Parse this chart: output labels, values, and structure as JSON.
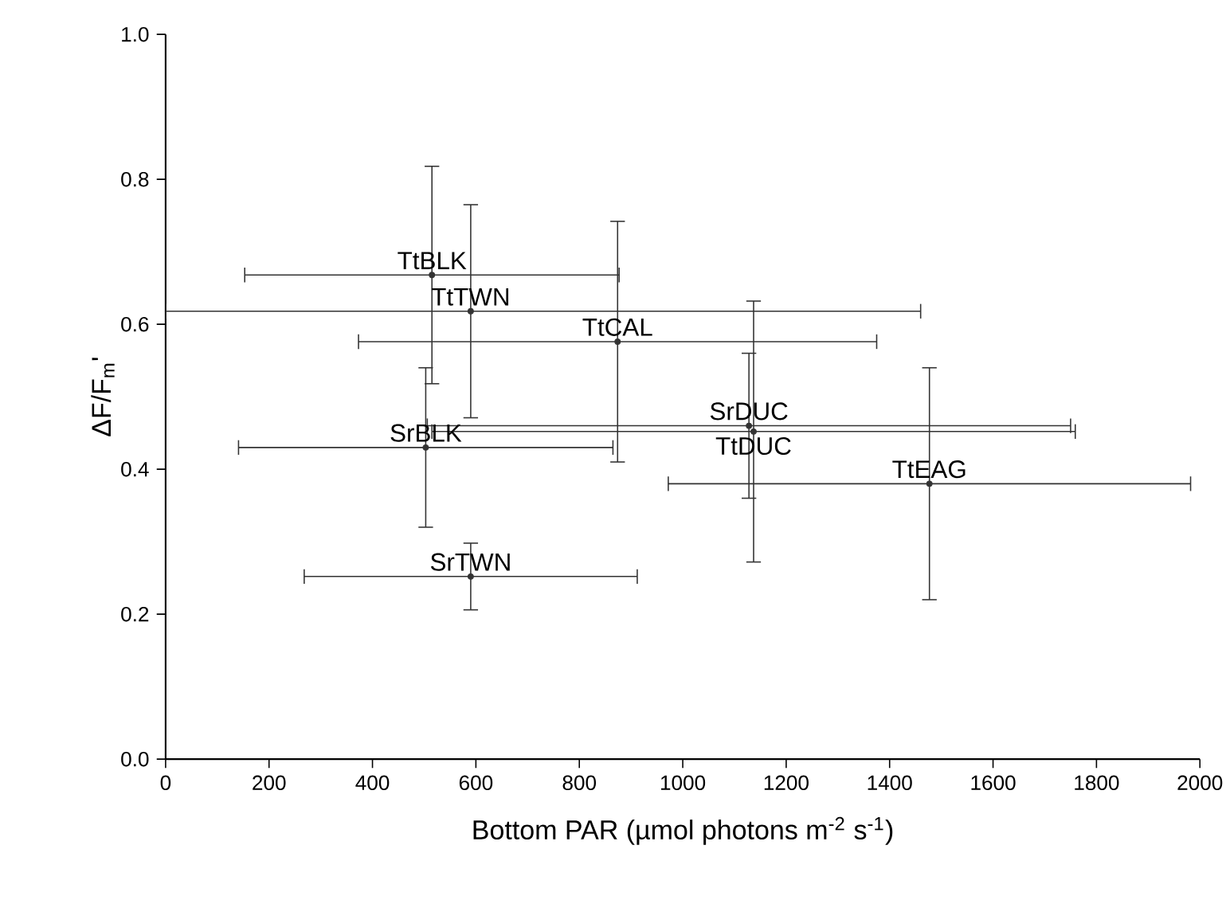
{
  "chart_data": {
    "type": "scatter",
    "xlabel": "Bottom PAR (µmol photons m$^{-2}$ s$^{-1}$)",
    "ylabel": "ΔF/F$_{m}$'",
    "x": [
      515,
      590,
      874,
      503,
      1128,
      1137,
      1477,
      590
    ],
    "values": [
      0.668,
      0.618,
      0.576,
      0.43,
      0.46,
      0.452,
      0.38,
      0.252
    ],
    "errors": [
      0.15,
      0.147,
      0.166,
      0.11,
      0.1,
      0.18,
      0.16,
      0.046
    ],
    "xerrors": [
      362,
      [
        0,
        1460
      ],
      501,
      362,
      622,
      622,
      505,
      322
    ],
    "color": "#333333",
    "annotations": [
      {
        "text": "TtBLK",
        "x": 515,
        "y": 0.668
      },
      {
        "text": "TtTWN",
        "x": 590,
        "y": 0.618
      },
      {
        "text": "TtCAL",
        "x": 874,
        "y": 0.576
      },
      {
        "text": "SrBLK",
        "x": 503,
        "y": 0.43
      },
      {
        "text": "SrDUC",
        "x": 1128,
        "y": 0.46
      },
      {
        "text": "TtDUC",
        "x": 1137,
        "y": 0.452
      },
      {
        "text": "TtEAG",
        "x": 1477,
        "y": 0.38
      },
      {
        "text": "SrTWN",
        "x": 590,
        "y": 0.252
      }
    ],
    "xlim": [
      0,
      2000
    ],
    "xticks": [
      0,
      200,
      400,
      600,
      800,
      1000,
      1200,
      1400,
      1600,
      1800,
      2000
    ],
    "ylim": [
      0,
      1.0
    ],
    "yticks": [
      {
        "value": 0,
        "label": "0.0"
      },
      {
        "value": 0.2,
        "label": "0.2"
      },
      {
        "value": 0.4,
        "label": "0.4"
      },
      {
        "value": 0.6,
        "label": "0.6"
      },
      {
        "value": 0.8,
        "label": "0.8"
      },
      {
        "value": 1.0,
        "label": "1.0"
      }
    ]
  }
}
